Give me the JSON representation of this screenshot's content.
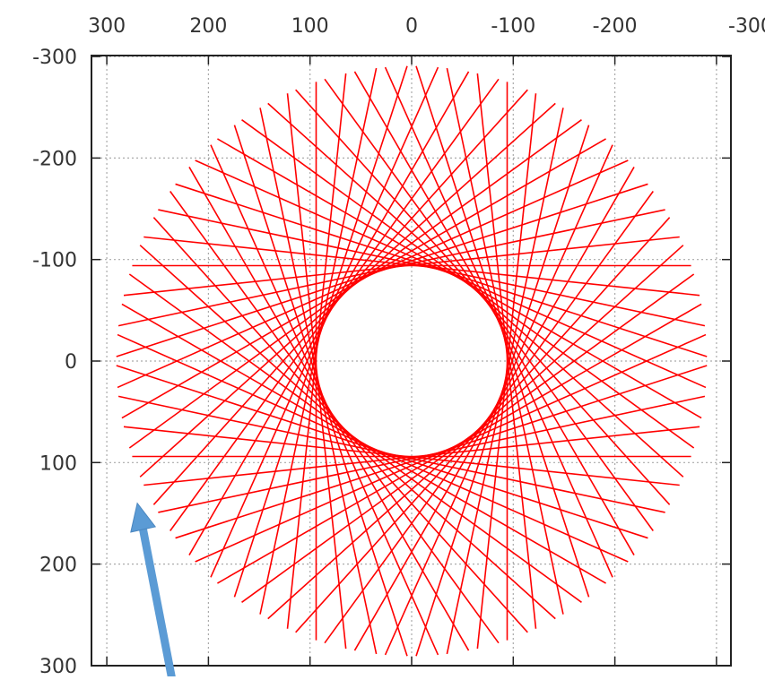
{
  "chart_data": {
    "type": "line",
    "title": "",
    "xlabel": "",
    "ylabel": "",
    "xlim": [
      300,
      -300
    ],
    "ylim": [
      -300,
      300
    ],
    "x_ticks": [
      300,
      200,
      100,
      0,
      -100,
      -200,
      -300
    ],
    "y_ticks": [
      -300,
      -200,
      -100,
      0,
      100,
      200,
      300
    ],
    "x_tick_labels": [
      "300",
      "200",
      "100",
      "0",
      "-100",
      "-200",
      "-300"
    ],
    "y_tick_labels": [
      "-300",
      "-200",
      "-100",
      "0",
      "100",
      "200",
      "300"
    ],
    "grid": "dotted",
    "legend": "none",
    "series": [
      {
        "line_count": 60,
        "inner_radius": 94,
        "x_extent": [
          -275,
          275
        ],
        "color": "#ff0000"
      }
    ],
    "annotations": [
      {
        "type": "arrow",
        "color": "#5b9bd5",
        "from": [
          235,
          300
        ],
        "to": [
          270,
          140
        ]
      }
    ]
  }
}
